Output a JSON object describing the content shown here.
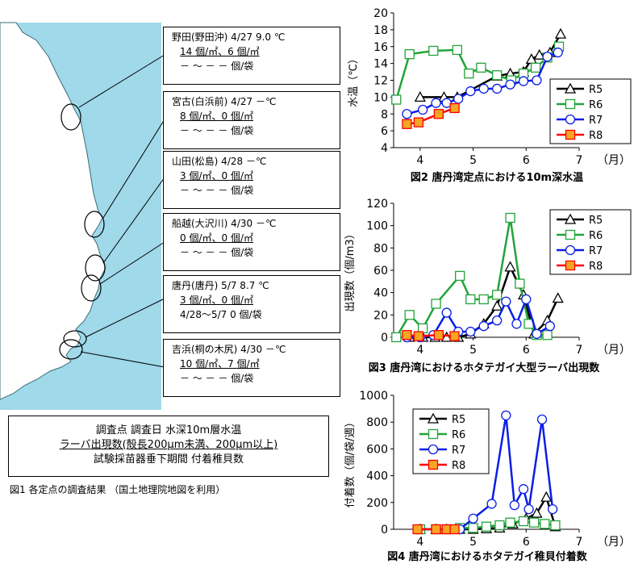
{
  "map": {
    "stations": [
      {
        "name_line": "野田(野田沖) 4/27  9.0 ℃",
        "counts_line": "14 個/㎡、6 個/㎡",
        "attach_line": "－ ～ －    － 個/袋"
      },
      {
        "name_line": "宮古(白浜前) 4/27 －℃",
        "counts_line": "8 個/㎡、0 個/㎡",
        "attach_line": "－ ～ －    － 個/袋"
      },
      {
        "name_line": "山田(松島) 4/28 －℃",
        "counts_line": "3 個/㎡、0 個/㎡",
        "attach_line": "－ ～ －    － 個/袋"
      },
      {
        "name_line": "船越(大沢川) 4/30 －℃",
        "counts_line": "0 個/㎡、0 個/㎡",
        "attach_line": "－ ～ －    － 個/袋"
      },
      {
        "name_line": "唐丹(唐丹) 5/7  8.7 ℃",
        "counts_line": "3 個/㎡、0 個/㎡",
        "attach_line": "4/28～5/7  0 個/袋"
      },
      {
        "name_line": "吉浜(桐の木尻) 4/30 －℃",
        "counts_line": "10 個/㎡、7 個/㎡",
        "attach_line": "－ ～ －    － 個/袋"
      }
    ],
    "legend": {
      "line1": "調査点  調査日  水深10m層水温",
      "line2": "ラーバ出現数(殻長200μm未満、200μm以上)",
      "line3": "試験採苗器垂下期間  付着稚貝数"
    },
    "caption": "図1  各定点の調査結果 （国土地理院地図を利用）",
    "colors": {
      "sea": "#9fd9ea",
      "land": "#ffffff"
    }
  },
  "chart_data": [
    {
      "type": "line",
      "title": "図2  唐丹湾定点における10m深水温",
      "ylabel": "水温（℃）",
      "xlabel": "（月）",
      "xlim": [
        3.5,
        7.0
      ],
      "ylim": [
        4,
        20
      ],
      "xticks": [
        4,
        5,
        6,
        7
      ],
      "yticks": [
        4,
        6,
        8,
        10,
        12,
        14,
        16,
        18,
        20
      ],
      "legend_position": "right",
      "series": [
        {
          "name": "R5",
          "color": "#000000",
          "marker": "triangle",
          "x": [
            4.0,
            4.45,
            4.7,
            5.45,
            5.7,
            5.95,
            6.1,
            6.25,
            6.45,
            6.65
          ],
          "y": [
            10.0,
            10.0,
            10.0,
            12.5,
            12.8,
            13.0,
            14.5,
            15.0,
            15.3,
            17.5
          ]
        },
        {
          "name": "R6",
          "color": "#22a33a",
          "marker": "square",
          "x": [
            3.55,
            3.8,
            4.25,
            4.7,
            4.92,
            5.15,
            5.45,
            5.72,
            5.95,
            6.18,
            6.4,
            6.62
          ],
          "y": [
            9.7,
            15.1,
            15.5,
            15.6,
            12.8,
            13.5,
            12.6,
            12.0,
            12.8,
            13.5,
            14.7,
            16.0
          ]
        },
        {
          "name": "R7",
          "color": "#0a1ee6",
          "marker": "circle",
          "x": [
            3.75,
            4.05,
            4.3,
            4.5,
            4.72,
            4.95,
            5.2,
            5.45,
            5.7,
            5.95,
            6.2,
            6.4,
            6.6
          ],
          "y": [
            8.0,
            8.5,
            9.3,
            9.3,
            9.8,
            10.7,
            11.0,
            11.0,
            11.5,
            11.9,
            12.0,
            14.8,
            15.3
          ]
        },
        {
          "name": "R8",
          "color": "#ff0000",
          "marker": "square-orange",
          "x": [
            3.75,
            3.97,
            4.35,
            4.65
          ],
          "y": [
            6.8,
            7.0,
            8.0,
            8.7
          ]
        }
      ]
    },
    {
      "type": "line",
      "title": "図3  唐丹湾におけるホタテガイ大型ラーバ出現数",
      "ylabel": "出現数（個/m3）",
      "xlabel": "（月）",
      "xlim": [
        3.5,
        7.0
      ],
      "ylim": [
        0,
        120
      ],
      "xticks": [
        4,
        5,
        6,
        7
      ],
      "yticks": [
        0,
        20,
        40,
        60,
        80,
        100,
        120
      ],
      "legend_position": "top-right",
      "series": [
        {
          "name": "R5",
          "color": "#000000",
          "marker": "triangle",
          "x": [
            3.8,
            4.05,
            4.28,
            4.5,
            4.72,
            4.95,
            5.2,
            5.45,
            5.7,
            5.95,
            6.15,
            6.4,
            6.6
          ],
          "y": [
            0,
            0,
            0,
            0,
            0,
            3,
            12,
            28,
            63,
            38,
            3,
            15,
            35
          ]
        },
        {
          "name": "R6",
          "color": "#22a33a",
          "marker": "square",
          "x": [
            3.55,
            3.8,
            4.05,
            4.3,
            4.75,
            4.95,
            5.2,
            5.45,
            5.7,
            5.88,
            6.05,
            6.2,
            6.4
          ],
          "y": [
            0,
            20,
            8,
            30,
            55,
            34,
            34,
            38,
            107,
            48,
            12,
            2,
            2
          ]
        },
        {
          "name": "R7",
          "color": "#0a1ee6",
          "marker": "circle",
          "x": [
            3.75,
            4.0,
            4.25,
            4.5,
            4.72,
            4.95,
            5.2,
            5.45,
            5.62,
            5.82,
            6.0,
            6.2,
            6.45
          ],
          "y": [
            0,
            0,
            2,
            22,
            5,
            5,
            10,
            15,
            32,
            12,
            34,
            3,
            10
          ]
        },
        {
          "name": "R8",
          "color": "#ff0000",
          "marker": "square-orange",
          "x": [
            3.75,
            3.97,
            4.35,
            4.65
          ],
          "y": [
            2,
            1,
            2,
            1
          ]
        }
      ]
    },
    {
      "type": "line",
      "title": "図4  唐丹湾におけるホタテガイ稚貝付着数",
      "ylabel": "付着数（個/袋/週）",
      "xlabel": "（月）",
      "xlim": [
        3.5,
        7.0
      ],
      "ylim": [
        0,
        1000
      ],
      "xticks": [
        4,
        5,
        6,
        7
      ],
      "yticks": [
        0,
        200,
        400,
        600,
        800,
        1000
      ],
      "legend_position": "top-left",
      "series": [
        {
          "name": "R5",
          "color": "#000000",
          "marker": "triangle",
          "x": [
            4.0,
            4.3,
            4.5,
            4.75,
            5.0,
            5.25,
            5.5,
            5.75,
            6.0,
            6.2,
            6.38,
            6.55
          ],
          "y": [
            0,
            0,
            0,
            0,
            0,
            5,
            10,
            40,
            80,
            120,
            240,
            20
          ]
        },
        {
          "name": "R6",
          "color": "#22a33a",
          "marker": "square",
          "x": [
            4.0,
            4.3,
            4.5,
            4.75,
            5.0,
            5.25,
            5.5,
            5.7,
            5.95,
            6.15,
            6.35,
            6.55
          ],
          "y": [
            0,
            0,
            0,
            10,
            10,
            20,
            30,
            50,
            60,
            50,
            40,
            30
          ]
        },
        {
          "name": "R7",
          "color": "#0a1ee6",
          "marker": "circle",
          "x": [
            3.95,
            4.3,
            4.5,
            4.75,
            5.0,
            5.35,
            5.62,
            5.78,
            5.95,
            6.05,
            6.3,
            6.5
          ],
          "y": [
            0,
            0,
            0,
            0,
            80,
            190,
            850,
            180,
            300,
            150,
            820,
            150
          ]
        },
        {
          "name": "R8",
          "color": "#ff0000",
          "marker": "square-orange",
          "x": [
            3.95,
            4.3,
            4.5,
            4.65
          ],
          "y": [
            0,
            0,
            0,
            0
          ]
        }
      ]
    }
  ]
}
